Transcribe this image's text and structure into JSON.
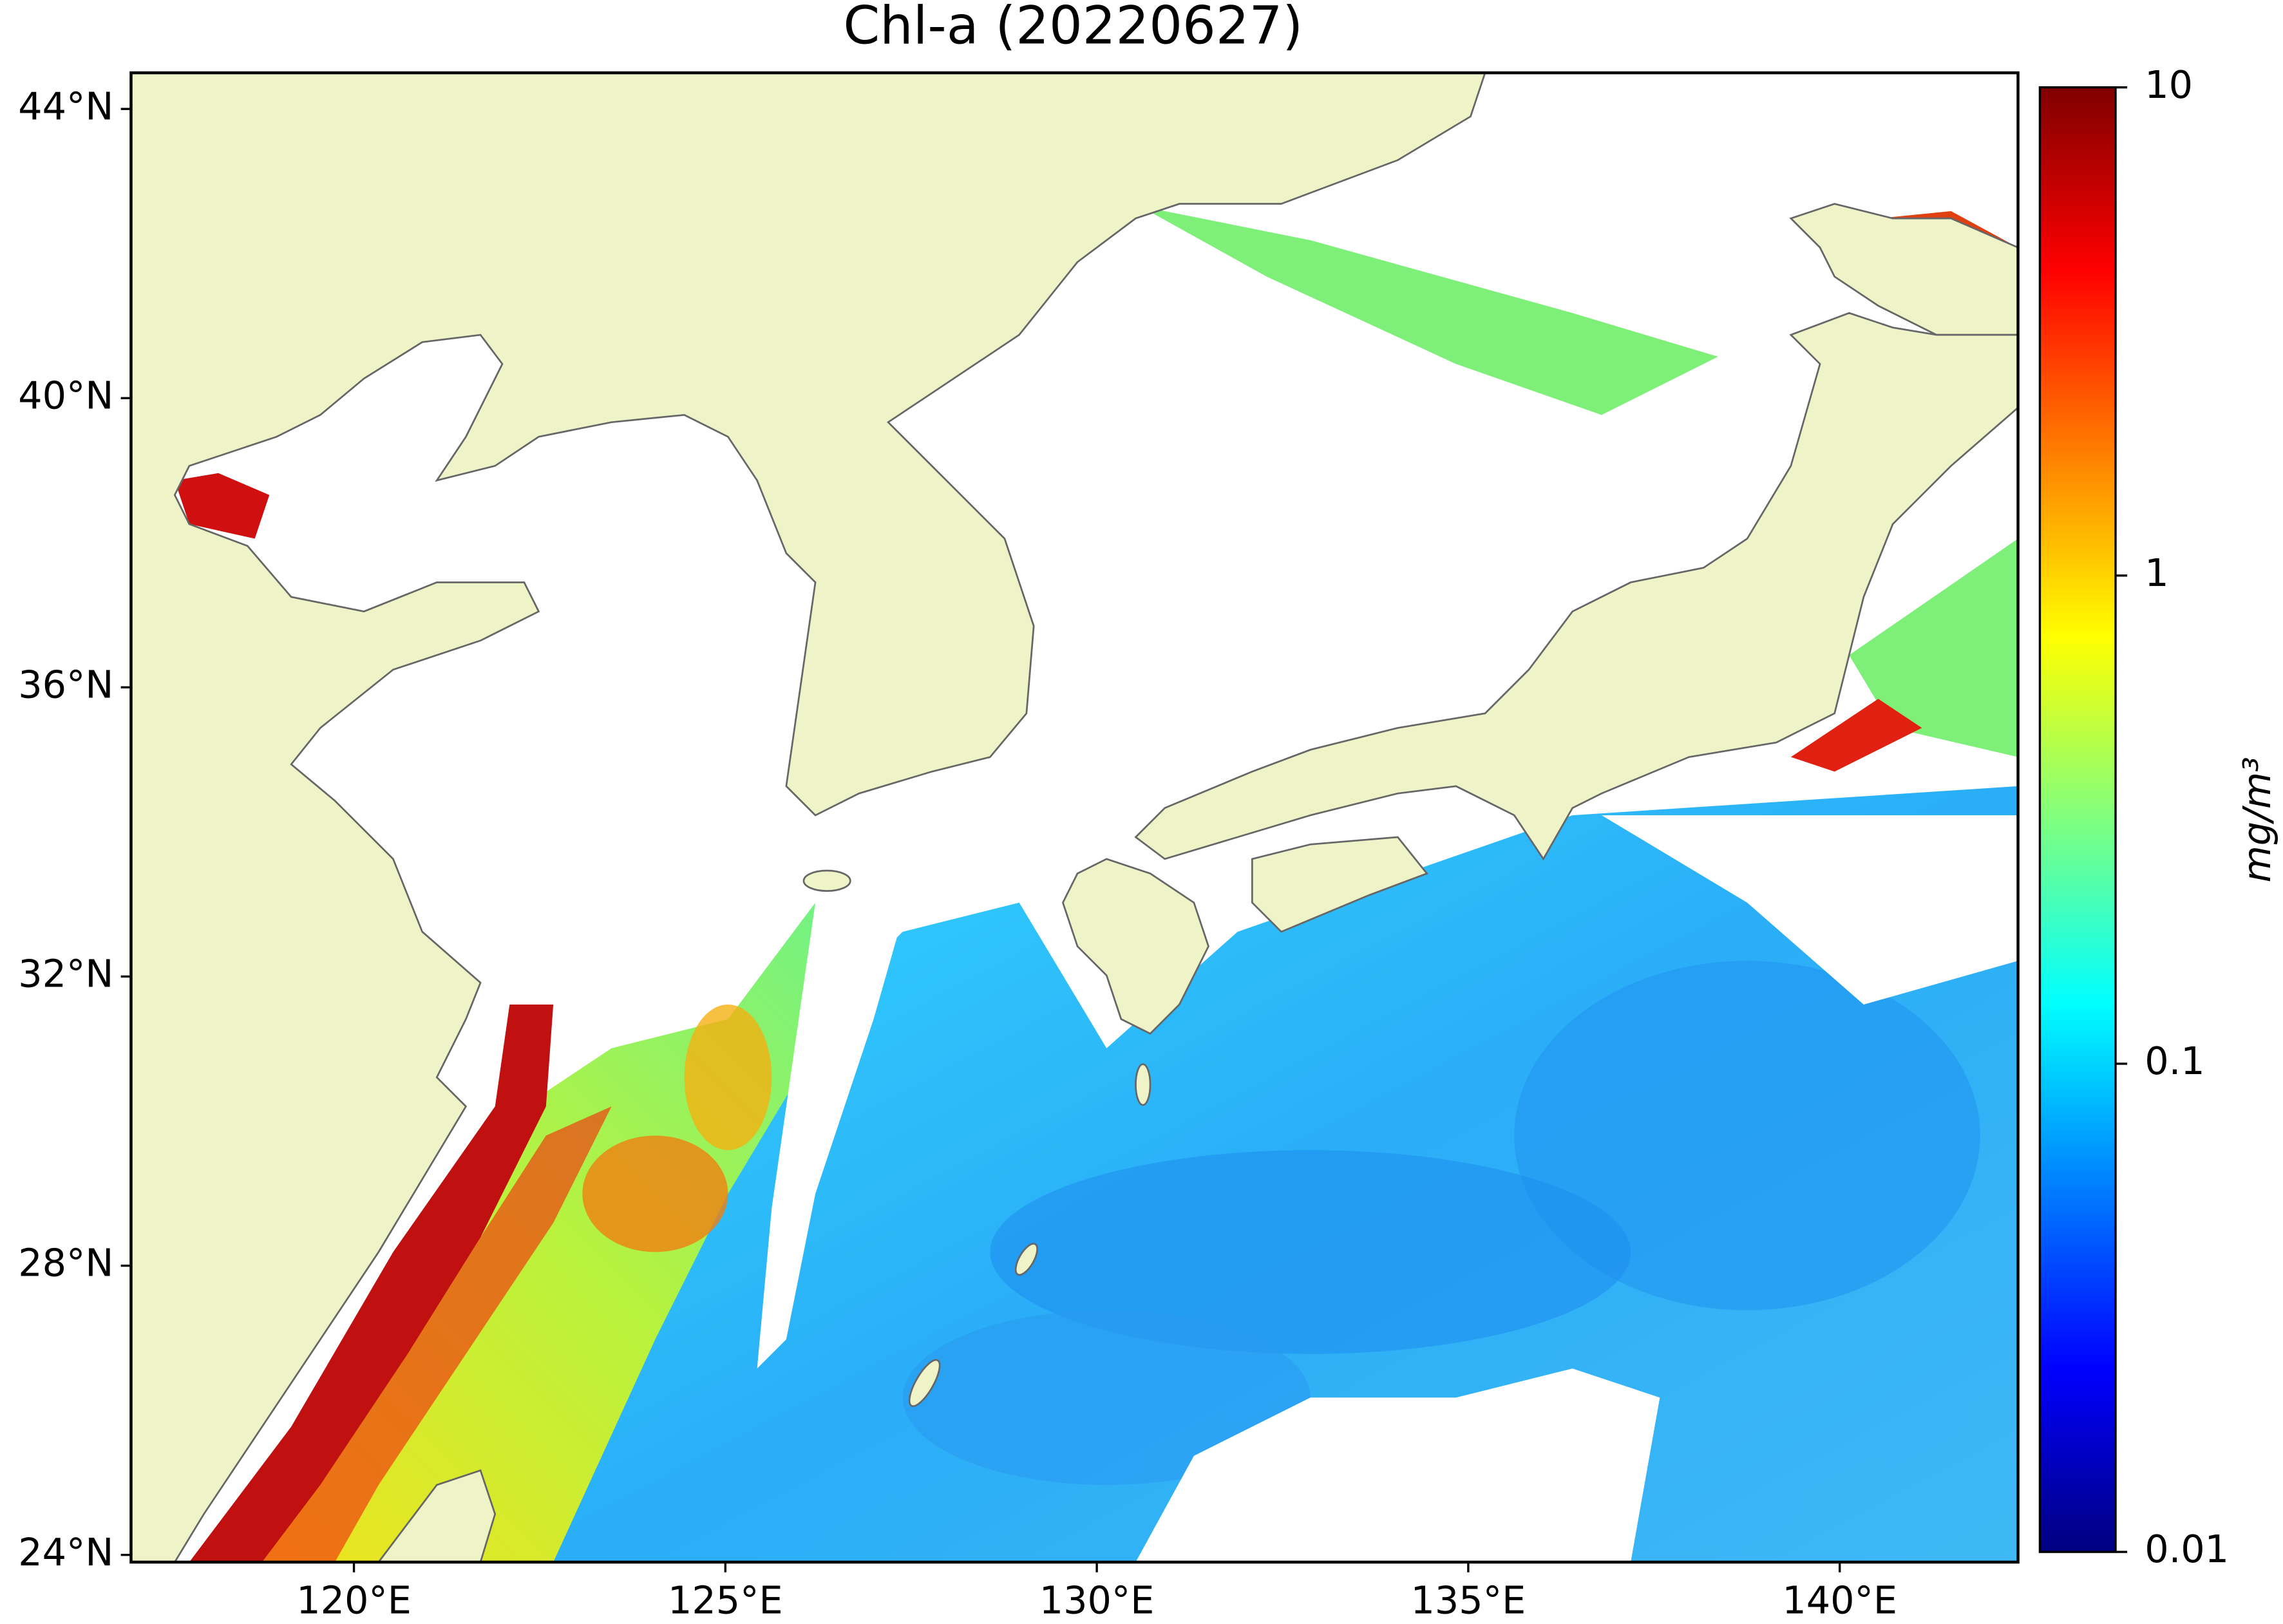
{
  "chart_data": {
    "type": "map",
    "title": "Chl-a (20220627)",
    "xlim": [
      117,
      142.4
    ],
    "ylim": [
      23.9,
      44.5
    ],
    "xticks": [
      {
        "value": 120,
        "label": "120°E"
      },
      {
        "value": 125,
        "label": "125°E"
      },
      {
        "value": 130,
        "label": "130°E"
      },
      {
        "value": 135,
        "label": "135°E"
      },
      {
        "value": 140,
        "label": "140°E"
      }
    ],
    "yticks": [
      {
        "value": 24,
        "label": "24°N"
      },
      {
        "value": 28,
        "label": "28°N"
      },
      {
        "value": 32,
        "label": "32°N"
      },
      {
        "value": 36,
        "label": "36°N"
      },
      {
        "value": 40,
        "label": "40°N"
      },
      {
        "value": 44,
        "label": "44°N"
      }
    ],
    "land_color": "#eff3c8",
    "colorbar": {
      "label": "mg/m³",
      "scale": "log",
      "colormap": "jet",
      "lim": [
        0.01,
        10
      ],
      "ticks": [
        {
          "value": 0.01,
          "label": "0.01"
        },
        {
          "value": 0.1,
          "label": "0.1"
        },
        1,
        10
      ]
    }
  }
}
